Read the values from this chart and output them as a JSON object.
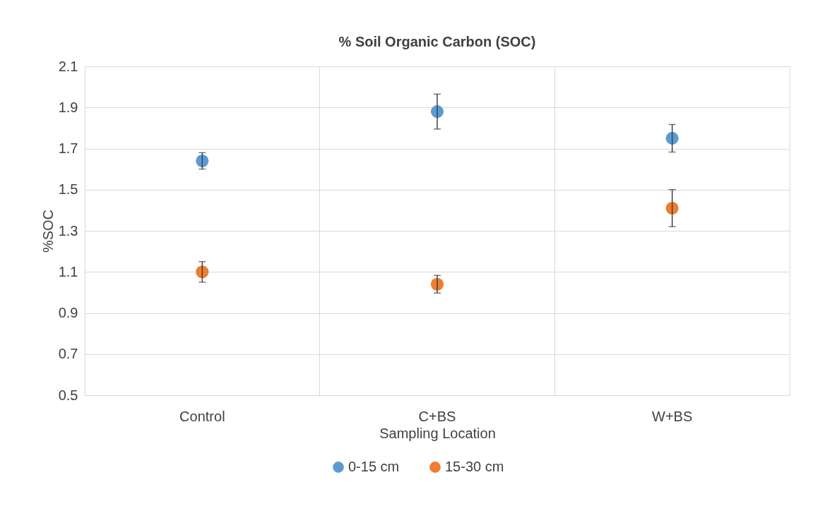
{
  "chart_data": {
    "type": "scatter",
    "title": "% Soil Organic Carbon (SOC)",
    "xlabel": "Sampling Location",
    "ylabel": "%SOC",
    "categories": [
      "Control",
      "C+BS",
      "W+BS"
    ],
    "series": [
      {
        "name": "0-15 cm",
        "color": "#5b9bd5",
        "values": [
          1.64,
          1.88,
          1.75
        ],
        "errors": [
          0.04,
          0.085,
          0.067
        ]
      },
      {
        "name": "15-30 cm",
        "color": "#ed7d31",
        "values": [
          1.1,
          1.04,
          1.41
        ],
        "errors": [
          0.05,
          0.043,
          0.09
        ]
      }
    ],
    "ylim": [
      0.5,
      2.1
    ],
    "yticks": [
      0.5,
      0.7,
      0.9,
      1.1,
      1.3,
      1.5,
      1.7,
      1.9,
      2.1
    ],
    "grid": true,
    "legend": "bottom",
    "marker": "circle"
  }
}
